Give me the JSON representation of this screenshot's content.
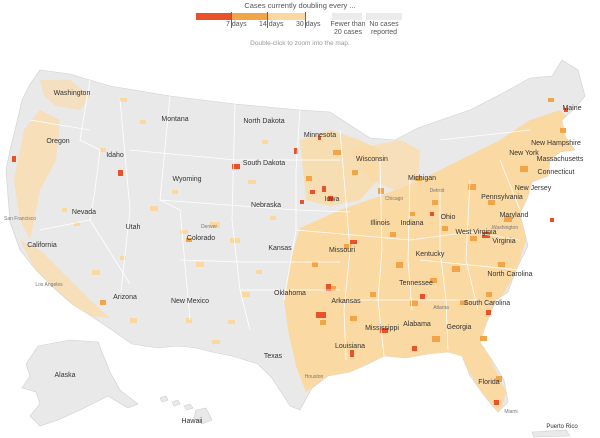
{
  "legend": {
    "title": "Cases currently doubling every ...",
    "items": [
      {
        "label": "7 days",
        "color": "#e8512a"
      },
      {
        "label": "14 days",
        "color": "#f2a548"
      },
      {
        "label": "30 days",
        "color": "#fbd8a0"
      },
      {
        "label": "Fewer than 20 cases",
        "color": "#eeeeee"
      },
      {
        "label": "No cases reported",
        "color": "#eeeeee"
      }
    ]
  },
  "hint": "Double-click to zoom into the map.",
  "colors": {
    "land": "#e9e9e9",
    "light_orange": "#fbd8a0",
    "mid_orange": "#f2a548",
    "red": "#e8512a",
    "border": "#ffffff"
  },
  "labels": {
    "washington": "Washington",
    "oregon": "Oregon",
    "idaho": "Idaho",
    "montana": "Montana",
    "wyoming": "Wyoming",
    "north_dakota": "North Dakota",
    "south_dakota": "South Dakota",
    "nebraska": "Nebraska",
    "minnesota": "Minnesota",
    "wisconsin": "Wisconsin",
    "michigan": "Michigan",
    "iowa": "Iowa",
    "illinois": "Illinois",
    "indiana": "Indiana",
    "ohio": "Ohio",
    "chicago": "Chicago",
    "detroit": "Detroit",
    "san_francisco": "San Francisco",
    "nevada": "Nevada",
    "utah": "Utah",
    "denver": "Denver",
    "colorado": "Colorado",
    "kansas": "Kansas",
    "missouri": "Missouri",
    "kentucky": "Kentucky",
    "california": "California",
    "los_angeles": "Los Angeles",
    "arizona": "Arizona",
    "new_mexico": "New Mexico",
    "oklahoma": "Oklahoma",
    "arkansas": "Arkansas",
    "tennessee": "Tennessee",
    "texas": "Texas",
    "houston": "Houston",
    "louisiana": "Louisiana",
    "mississippi": "Mississippi",
    "alabama": "Alabama",
    "georgia": "Georgia",
    "atlanta": "Atlanta",
    "south_carolina": "South Carolina",
    "north_carolina": "North Carolina",
    "virginia": "Virginia",
    "west_virginia": "West Virginia",
    "washington_dc": "Washington",
    "maryland": "Maryland",
    "pennsylvania": "Pennsylvania",
    "new_jersey": "New Jersey",
    "new_york": "New York",
    "connecticut": "Connecticut",
    "massachusetts": "Massachusetts",
    "new_hampshire": "New Hampshire",
    "maine": "Maine",
    "florida": "Florida",
    "miami": "Miami",
    "alaska": "Alaska",
    "hawaii": "Hawaii",
    "puerto_rico": "Puerto Rico"
  }
}
